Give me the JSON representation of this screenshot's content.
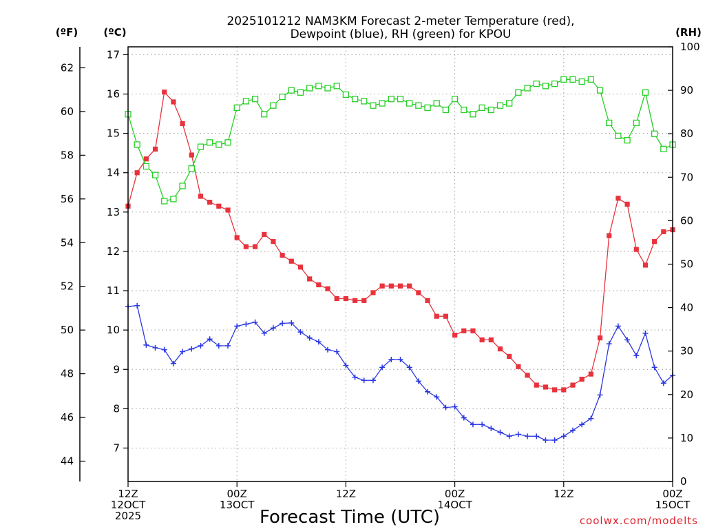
{
  "chart_data": {
    "type": "line",
    "title_lines": [
      "2025101212 NAM3KM Forecast 2-meter Temperature (red),",
      "Dewpoint (blue), RH (green) for KPOU"
    ],
    "xlabel": "Forecast Time (UTC)",
    "credit": "coolwx.com/modelts",
    "units": {
      "fahrenheit": "(ºF)",
      "celsius": "(ºC)",
      "rh": "(RH)"
    },
    "x_range_hours": [
      0,
      60
    ],
    "x_ticks": [
      {
        "hour": 0,
        "lines": [
          "12Z",
          "12OCT",
          "2025"
        ]
      },
      {
        "hour": 12,
        "lines": [
          "00Z",
          "13OCT"
        ]
      },
      {
        "hour": 24,
        "lines": [
          "12Z"
        ]
      },
      {
        "hour": 36,
        "lines": [
          "00Z",
          "14OCT"
        ]
      },
      {
        "hour": 48,
        "lines": [
          "12Z"
        ]
      },
      {
        "hour": 60,
        "lines": [
          "00Z",
          "15OCT"
        ]
      }
    ],
    "celsius_axis": {
      "range": [
        6.15,
        17.2
      ],
      "ticks": [
        7,
        8,
        9,
        10,
        11,
        12,
        13,
        14,
        15,
        16,
        17
      ]
    },
    "fahrenheit_axis": {
      "ticks": [
        44,
        46,
        48,
        50,
        52,
        54,
        56,
        58,
        60,
        62
      ]
    },
    "rh_axis": {
      "range": [
        0,
        100
      ],
      "ticks": [
        0,
        10,
        20,
        30,
        40,
        50,
        60,
        70,
        80,
        90,
        100
      ]
    },
    "series": [
      {
        "name": "2-meter Temperature",
        "unit": "C",
        "color": "#e8323c",
        "marker": "filled-square",
        "values": [
          13.15,
          14.0,
          14.35,
          14.6,
          16.05,
          15.8,
          15.25,
          14.45,
          13.4,
          13.25,
          13.15,
          13.05,
          12.35,
          12.12,
          12.12,
          12.43,
          12.25,
          11.9,
          11.75,
          11.6,
          11.3,
          11.15,
          11.05,
          10.8,
          10.8,
          10.75,
          10.75,
          10.95,
          11.12,
          11.12,
          11.12,
          11.12,
          10.95,
          10.75,
          10.35,
          10.35,
          9.87,
          9.98,
          9.98,
          9.75,
          9.75,
          9.52,
          9.33,
          9.07,
          8.85,
          8.6,
          8.55,
          8.48,
          8.48,
          8.6,
          8.75,
          8.88,
          9.8,
          12.4,
          13.35,
          13.2,
          12.05,
          11.65,
          12.25,
          12.5,
          12.55
        ]
      },
      {
        "name": "Dewpoint",
        "unit": "C",
        "color": "#2a37e0",
        "marker": "plus",
        "values": [
          10.6,
          10.62,
          9.62,
          9.55,
          9.5,
          9.15,
          9.45,
          9.52,
          9.6,
          9.77,
          9.6,
          9.6,
          10.1,
          10.15,
          10.2,
          9.92,
          10.05,
          10.17,
          10.18,
          9.95,
          9.8,
          9.7,
          9.5,
          9.45,
          9.1,
          8.8,
          8.72,
          8.72,
          9.05,
          9.25,
          9.25,
          9.05,
          8.7,
          8.43,
          8.3,
          8.03,
          8.05,
          7.77,
          7.6,
          7.6,
          7.5,
          7.4,
          7.3,
          7.35,
          7.3,
          7.3,
          7.2,
          7.2,
          7.3,
          7.45,
          7.6,
          7.75,
          8.35,
          9.65,
          10.1,
          9.75,
          9.35,
          9.92,
          9.05,
          8.65,
          8.85
        ]
      },
      {
        "name": "RH",
        "unit": "%",
        "color": "#26cf26",
        "marker": "open-square",
        "values": [
          84.5,
          77.5,
          72.5,
          70.5,
          64.5,
          65,
          68,
          72,
          77,
          78,
          77.5,
          78,
          86,
          87.5,
          88,
          84.5,
          86.5,
          88.5,
          90,
          89.5,
          90.5,
          91,
          90.5,
          91,
          89,
          88,
          87.5,
          86.5,
          87,
          88,
          88,
          87,
          86.5,
          86,
          87,
          85.5,
          88,
          85.5,
          84.5,
          86,
          85.5,
          86.5,
          87,
          89.5,
          90.5,
          91.5,
          91,
          91.5,
          92.5,
          92.5,
          92,
          92.5,
          90,
          82.5,
          79.5,
          78.5,
          82.5,
          89.5,
          80,
          76.5,
          77.5
        ]
      }
    ]
  }
}
